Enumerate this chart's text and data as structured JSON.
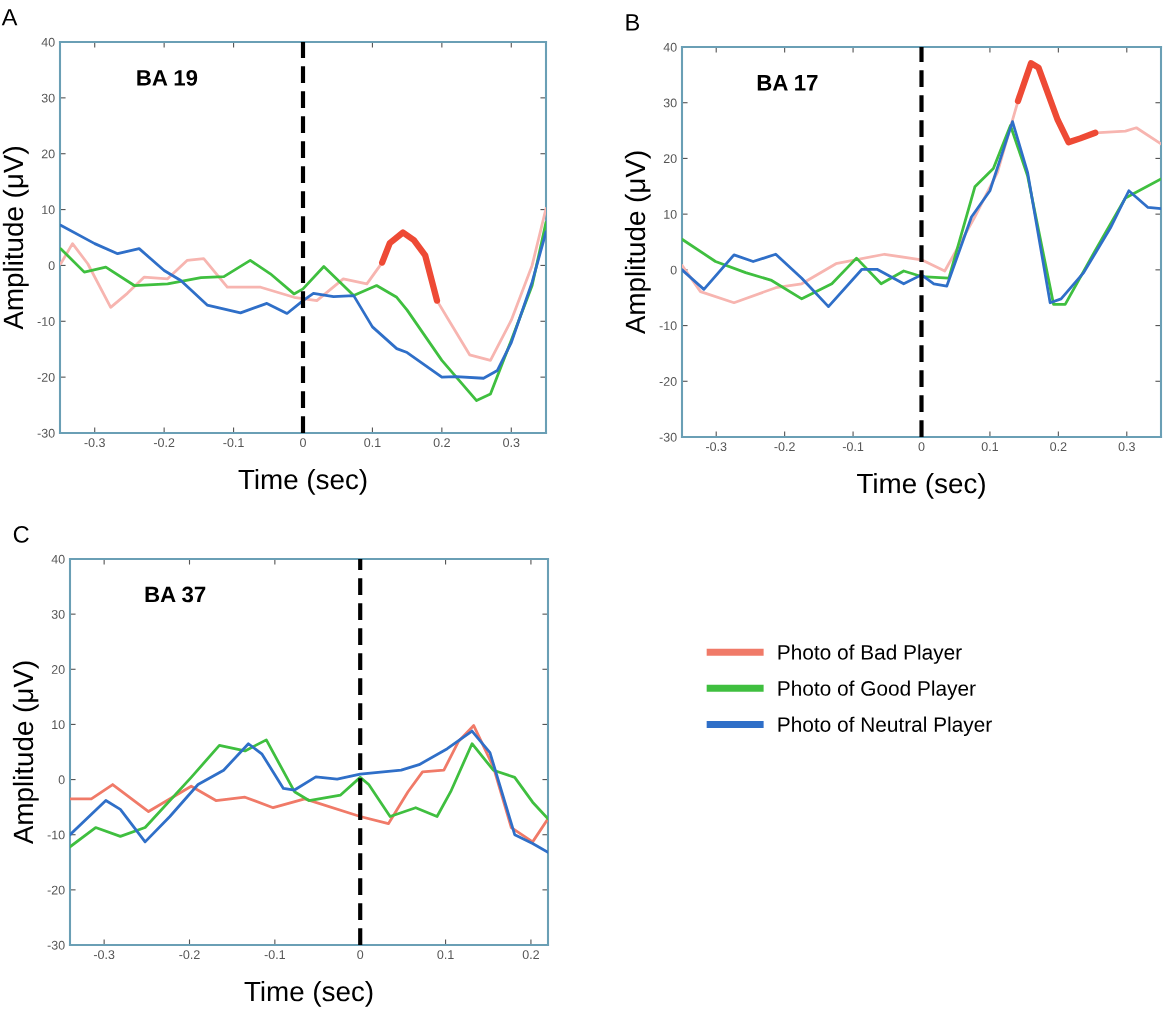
{
  "chart_data": [
    {
      "type": "line",
      "title": "A",
      "xlabel": "Time (sec)",
      "ylabel": "Amplitude (μV)",
      "annotations": [
        "BA 19"
      ],
      "xlim": [
        -0.35,
        0.35
      ],
      "ylim": [
        -30,
        40
      ],
      "xticks": [
        -0.3,
        -0.2,
        -0.1,
        0,
        0.1,
        0.2,
        0.3
      ],
      "yticks": [
        -30,
        -20,
        -10,
        0,
        10,
        20,
        30,
        40
      ],
      "legend": false,
      "ref_lines": [
        {
          "axis": "x",
          "value": 0,
          "color": "#000000",
          "line_style": "dashed"
        }
      ],
      "series": [
        {
          "color": "#f7b5b0",
          "x": [
            -0.349,
            -0.332,
            -0.31,
            -0.277,
            -0.253,
            -0.229,
            -0.195,
            -0.167,
            -0.143,
            -0.109,
            -0.061,
            -0.013,
            0.02,
            0.058,
            0.092,
            0.114,
            0.15,
            0.193,
            0.21,
            0.24,
            0.27,
            0.3,
            0.33,
            0.35
          ],
          "values": [
            0.3,
            3.9,
            0.3,
            -7.5,
            -5,
            -2.1,
            -2.4,
            0.9,
            1.2,
            -3.9,
            -3.9,
            -5.7,
            -6.3,
            -2.4,
            -3.3,
            0.5,
            null,
            -6.3,
            -9.8,
            -16,
            -17,
            -9.8,
            0,
            10.2
          ]
        },
        {
          "color": "#ee4a35",
          "x": [
            0.114,
            0.125,
            0.144,
            0.16,
            0.176,
            0.193
          ],
          "values": [
            0.5,
            4,
            5.9,
            4.5,
            1.8,
            -6.3
          ]
        },
        {
          "color": "#3fbf3f",
          "x": [
            -0.349,
            -0.315,
            -0.284,
            -0.243,
            -0.195,
            -0.147,
            -0.114,
            -0.076,
            -0.047,
            -0.013,
            0,
            0.03,
            0.073,
            0.106,
            0.135,
            0.15,
            0.2,
            0.25,
            0.27,
            0.3,
            0.33,
            0.35
          ],
          "values": [
            3,
            -1.2,
            -0.3,
            -3.6,
            -3.3,
            -2.2,
            -2,
            0.9,
            -1.5,
            -5.1,
            -4.2,
            -0.2,
            -5.4,
            -3.6,
            -5.7,
            -8,
            -17,
            -24.2,
            -23,
            -13.4,
            -3.6,
            7.7
          ]
        },
        {
          "color": "#2f6fc8",
          "x": [
            -0.349,
            -0.3,
            -0.267,
            -0.236,
            -0.2,
            -0.176,
            -0.138,
            -0.09,
            -0.052,
            -0.023,
            0,
            0.015,
            0.044,
            0.073,
            0.1,
            0.135,
            0.15,
            0.2,
            0.22,
            0.26,
            0.28,
            0.3,
            0.33,
            0.35
          ],
          "values": [
            7.2,
            3.9,
            2.1,
            3,
            -0.9,
            -2.7,
            -7.1,
            -8.5,
            -6.8,
            -8.6,
            -6.3,
            -5,
            -5.6,
            -5.4,
            -11,
            -14.9,
            -15.6,
            -20,
            -19.9,
            -20.2,
            -18.8,
            -13.8,
            -3,
            6
          ]
        }
      ]
    },
    {
      "type": "line",
      "title": "B",
      "xlabel": "Time (sec)",
      "ylabel": "Amplitude (μV)",
      "annotations": [
        "BA 17"
      ],
      "xlim": [
        -0.35,
        0.35
      ],
      "ylim": [
        -30,
        40
      ],
      "xticks": [
        -0.3,
        -0.2,
        -0.1,
        0,
        0.1,
        0.2,
        0.3
      ],
      "yticks": [
        -30,
        -20,
        -10,
        0,
        10,
        20,
        30,
        40
      ],
      "legend": false,
      "ref_lines": [
        {
          "axis": "x",
          "value": 0,
          "color": "#000000",
          "line_style": "dashed"
        }
      ],
      "series": [
        {
          "color": "#f7b5b0",
          "x": [
            -0.35,
            -0.323,
            -0.274,
            -0.213,
            -0.175,
            -0.125,
            -0.054,
            0,
            0.034,
            0.078,
            0.111,
            0.141,
            0.2,
            0.254,
            0.298,
            0.314,
            0.35
          ],
          "values": [
            0.8,
            -3.9,
            -5.9,
            -3.2,
            -2.5,
            1.1,
            2.8,
            1.8,
            -0.2,
            9.5,
            17.5,
            30.3,
            null,
            24.6,
            24.9,
            25.5,
            22.6
          ]
        },
        {
          "color": "#ee4a35",
          "x": [
            0.141,
            0.16,
            0.171,
            0.199,
            0.215,
            0.232,
            0.254
          ],
          "values": [
            30.3,
            37.1,
            36.3,
            26.9,
            22.9,
            23.6,
            24.6
          ]
        },
        {
          "color": "#3fbf3f",
          "x": [
            -0.35,
            -0.301,
            -0.257,
            -0.219,
            -0.175,
            -0.131,
            -0.095,
            -0.059,
            -0.026,
            0,
            0.04,
            0.078,
            0.105,
            0.13,
            0.155,
            0.193,
            0.21,
            0.254,
            0.298,
            0.35
          ],
          "values": [
            5.5,
            1.5,
            -0.5,
            -1.9,
            -5.2,
            -2.5,
            2.1,
            -2.5,
            -0.2,
            -1.2,
            -1.5,
            14.9,
            18.2,
            25.9,
            16.9,
            -6.2,
            -6.2,
            3.5,
            12.9,
            16.3
          ]
        },
        {
          "color": "#2f6fc8",
          "x": [
            -0.35,
            -0.318,
            -0.274,
            -0.246,
            -0.213,
            -0.175,
            -0.136,
            -0.087,
            -0.065,
            -0.026,
            0,
            0.018,
            0.037,
            0.073,
            0.1,
            0.133,
            0.155,
            0.188,
            0.204,
            0.237,
            0.276,
            0.303,
            0.331,
            0.35
          ],
          "values": [
            0,
            -3.5,
            2.7,
            1.5,
            2.8,
            -1.5,
            -6.6,
            0.1,
            0.1,
            -2.5,
            -0.9,
            -2.5,
            -2.9,
            9.5,
            14.2,
            26.6,
            17.5,
            -5.9,
            -5.2,
            -0.5,
            7.5,
            14.2,
            11.2,
            11
          ]
        }
      ]
    },
    {
      "type": "line",
      "title": "C",
      "xlabel": "Time (sec)",
      "ylabel": "Amplitude (μV)",
      "annotations": [
        "BA 37"
      ],
      "xlim": [
        -0.34,
        0.22
      ],
      "ylim": [
        -30,
        40
      ],
      "xticks": [
        -0.3,
        -0.2,
        -0.1,
        0,
        0.1,
        0.2
      ],
      "yticks": [
        -30,
        -20,
        -10,
        0,
        10,
        20,
        30,
        40
      ],
      "legend": "right",
      "ref_lines": [
        {
          "axis": "x",
          "value": 0,
          "color": "#000000",
          "line_style": "dashed"
        }
      ],
      "series": [
        {
          "name": "Photo of Bad Player",
          "color": "#f07a68",
          "x": [
            -0.34,
            -0.315,
            -0.29,
            -0.248,
            -0.198,
            -0.169,
            -0.135,
            -0.102,
            -0.065,
            0,
            0.033,
            0.056,
            0.073,
            0.098,
            0.115,
            0.133,
            0.156,
            0.177,
            0.202,
            0.22
          ],
          "values": [
            -3.5,
            -3.5,
            -0.9,
            -5.8,
            -1.2,
            -3.8,
            -3.2,
            -5.1,
            -3.5,
            -6.7,
            -8,
            -2.2,
            1.4,
            1.7,
            6.9,
            9.8,
            2.3,
            -8.7,
            -11.3,
            -7.1
          ]
        },
        {
          "name": "Photo of Good Player",
          "color": "#3fbf3f",
          "x": [
            -0.34,
            -0.31,
            -0.281,
            -0.252,
            -0.198,
            -0.165,
            -0.135,
            -0.11,
            -0.077,
            -0.06,
            -0.023,
            0,
            0.01,
            0.035,
            0.065,
            0.09,
            0.106,
            0.131,
            0.156,
            0.181,
            0.202,
            0.22
          ],
          "values": [
            -12.2,
            -8.7,
            -10.3,
            -8.7,
            0.4,
            6.2,
            5.2,
            7.2,
            -2.2,
            -3.8,
            -2.8,
            0.4,
            -0.9,
            -6.7,
            -5.1,
            -6.7,
            -2.2,
            6.5,
            1.7,
            0.4,
            -4.1,
            -7.1
          ]
        },
        {
          "name": "Photo of Neutral Player",
          "color": "#2f6fc8",
          "x": [
            -0.34,
            -0.298,
            -0.281,
            -0.252,
            -0.223,
            -0.19,
            -0.16,
            -0.131,
            -0.115,
            -0.09,
            -0.077,
            -0.052,
            -0.027,
            0,
            0.048,
            0.069,
            0.102,
            0.131,
            0.152,
            0.181,
            0.202,
            0.22
          ],
          "values": [
            -10,
            -3.8,
            -5.4,
            -11.3,
            -6.7,
            -0.9,
            1.7,
            6.5,
            4.6,
            -1.6,
            -1.9,
            0.5,
            0.1,
            1,
            1.7,
            2.7,
            5.6,
            8.8,
            4.9,
            -10,
            -11.6,
            -13.2
          ]
        }
      ]
    }
  ]
}
